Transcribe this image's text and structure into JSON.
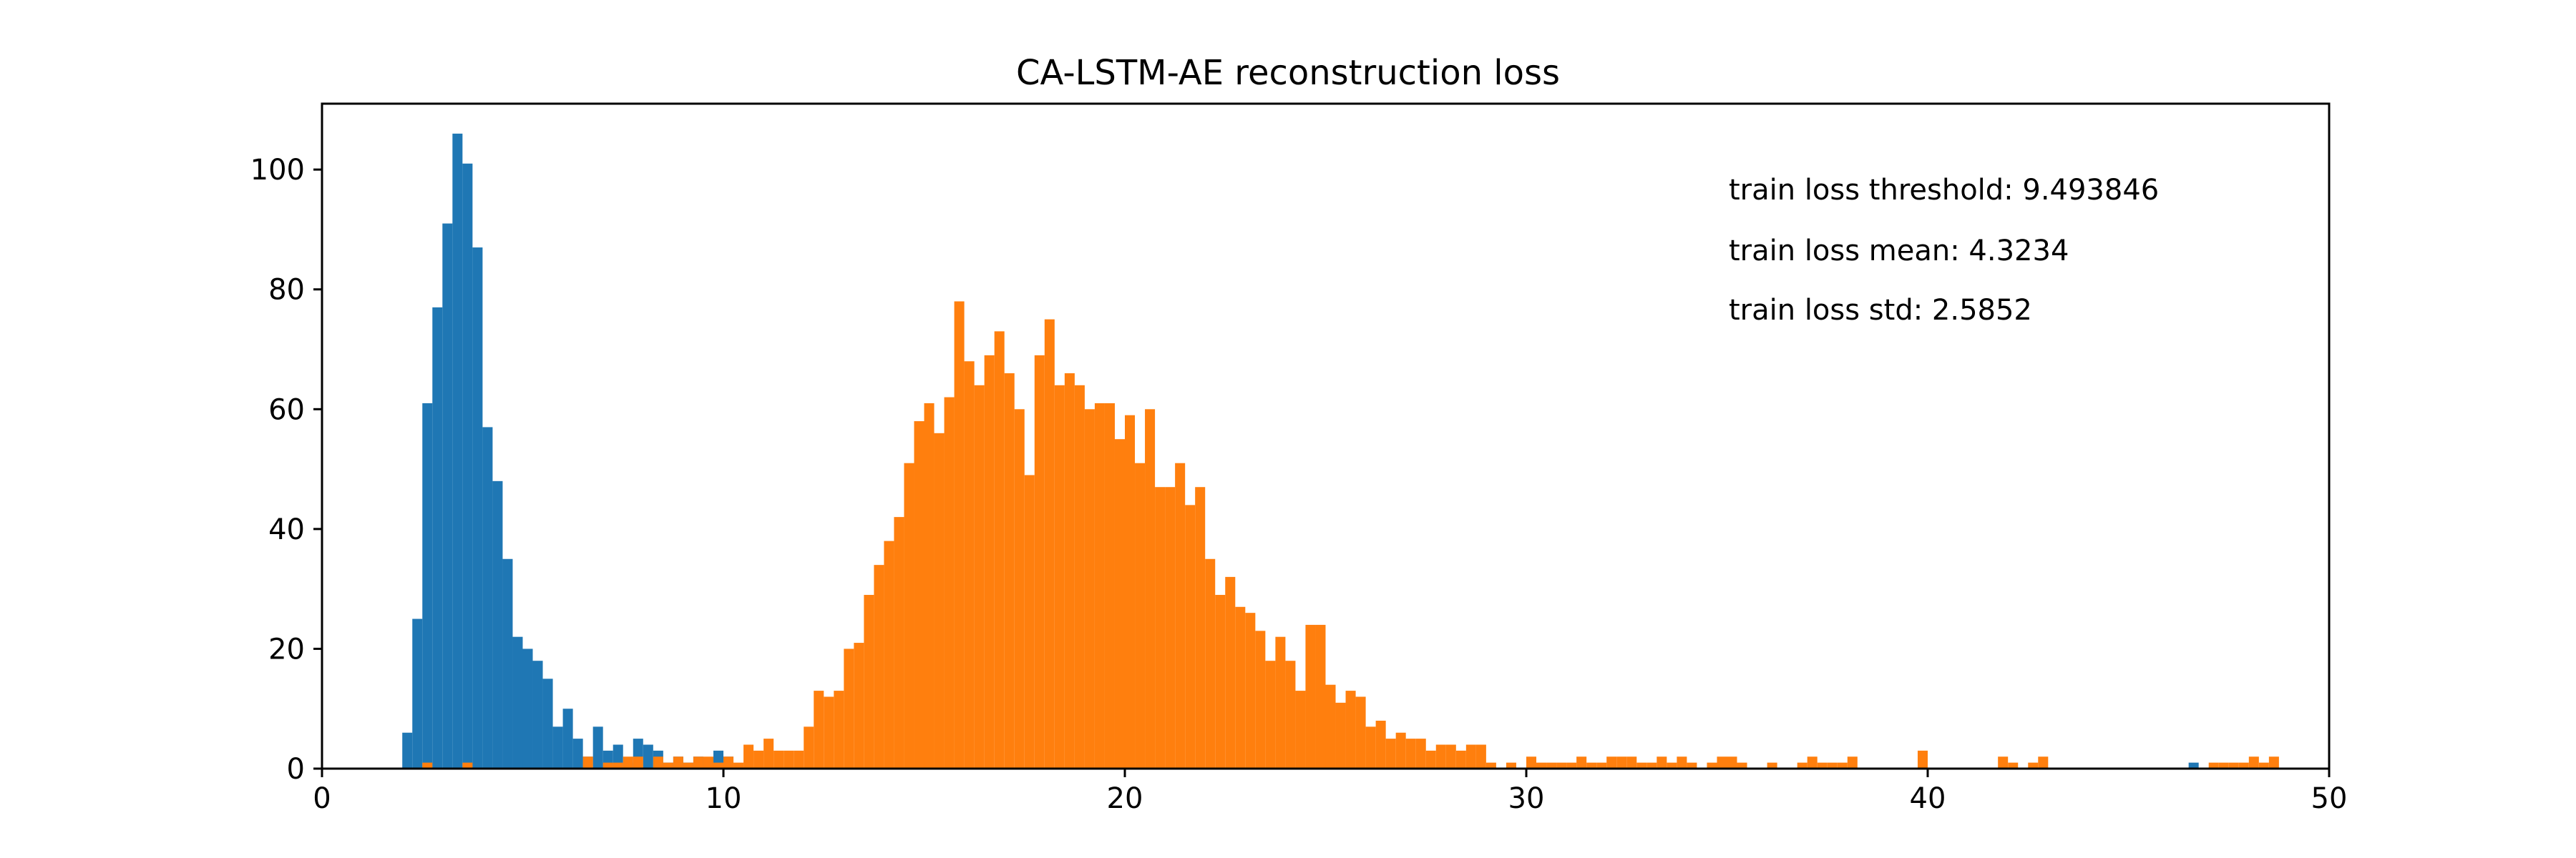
{
  "chart_data": {
    "type": "bar",
    "title": "CA-LSTM-AE reconstruction loss",
    "xlabel": "",
    "ylabel": "",
    "xlim": [
      0,
      50
    ],
    "ylim": [
      0,
      111
    ],
    "xticks": [
      0,
      10,
      20,
      30,
      40,
      50
    ],
    "yticks": [
      0,
      20,
      40,
      60,
      80,
      100
    ],
    "grid": false,
    "bin_width": 0.25,
    "annotations": [
      "train loss threshold: 9.493846",
      "train loss mean: 4.3234",
      "train loss std: 2.5852"
    ],
    "series": [
      {
        "color": "#1f77b4",
        "bins": [
          [
            2.0,
            6
          ],
          [
            2.25,
            25
          ],
          [
            2.5,
            61
          ],
          [
            2.75,
            77
          ],
          [
            3.0,
            91
          ],
          [
            3.25,
            106
          ],
          [
            3.5,
            101
          ],
          [
            3.75,
            87
          ],
          [
            4.0,
            57
          ],
          [
            4.25,
            48
          ],
          [
            4.5,
            35
          ],
          [
            4.75,
            22
          ],
          [
            5.0,
            20
          ],
          [
            5.25,
            18
          ],
          [
            5.5,
            15
          ],
          [
            5.75,
            7
          ],
          [
            6.0,
            10
          ],
          [
            6.25,
            5
          ],
          [
            6.5,
            2
          ],
          [
            6.75,
            7
          ],
          [
            7.0,
            3
          ],
          [
            7.25,
            4
          ],
          [
            7.5,
            1
          ],
          [
            7.75,
            5
          ],
          [
            8.0,
            4
          ],
          [
            8.25,
            3
          ],
          [
            8.5,
            1
          ],
          [
            8.75,
            2
          ],
          [
            9.0,
            1
          ],
          [
            9.25,
            2
          ],
          [
            9.5,
            1
          ],
          [
            9.75,
            3
          ],
          [
            10.0,
            2
          ],
          [
            46.5,
            1
          ]
        ]
      },
      {
        "color": "#ff7f0e",
        "bins": [
          [
            2.5,
            1
          ],
          [
            3.5,
            1
          ],
          [
            6.5,
            2
          ],
          [
            7.0,
            1
          ],
          [
            7.25,
            1
          ],
          [
            7.5,
            2
          ],
          [
            7.75,
            2
          ],
          [
            8.25,
            2
          ],
          [
            8.5,
            1
          ],
          [
            8.75,
            2
          ],
          [
            9.0,
            1
          ],
          [
            9.25,
            2
          ],
          [
            9.5,
            2
          ],
          [
            9.75,
            1
          ],
          [
            10.0,
            2
          ],
          [
            10.25,
            1
          ],
          [
            10.5,
            4
          ],
          [
            10.75,
            3
          ],
          [
            11.0,
            5
          ],
          [
            11.25,
            3
          ],
          [
            11.5,
            3
          ],
          [
            11.75,
            3
          ],
          [
            12.0,
            7
          ],
          [
            12.25,
            13
          ],
          [
            12.5,
            12
          ],
          [
            12.75,
            13
          ],
          [
            13.0,
            20
          ],
          [
            13.25,
            21
          ],
          [
            13.5,
            29
          ],
          [
            13.75,
            34
          ],
          [
            14.0,
            38
          ],
          [
            14.25,
            42
          ],
          [
            14.5,
            51
          ],
          [
            14.75,
            58
          ],
          [
            15.0,
            61
          ],
          [
            15.25,
            56
          ],
          [
            15.5,
            62
          ],
          [
            15.75,
            78
          ],
          [
            16.0,
            68
          ],
          [
            16.25,
            64
          ],
          [
            16.5,
            69
          ],
          [
            16.75,
            73
          ],
          [
            17.0,
            66
          ],
          [
            17.25,
            60
          ],
          [
            17.5,
            49
          ],
          [
            17.75,
            69
          ],
          [
            18.0,
            75
          ],
          [
            18.25,
            64
          ],
          [
            18.5,
            66
          ],
          [
            18.75,
            64
          ],
          [
            19.0,
            60
          ],
          [
            19.25,
            61
          ],
          [
            19.5,
            61
          ],
          [
            19.75,
            55
          ],
          [
            20.0,
            59
          ],
          [
            20.25,
            51
          ],
          [
            20.5,
            60
          ],
          [
            20.75,
            47
          ],
          [
            21.0,
            47
          ],
          [
            21.25,
            51
          ],
          [
            21.5,
            44
          ],
          [
            21.75,
            47
          ],
          [
            22.0,
            35
          ],
          [
            22.25,
            29
          ],
          [
            22.5,
            32
          ],
          [
            22.75,
            27
          ],
          [
            23.0,
            26
          ],
          [
            23.25,
            23
          ],
          [
            23.5,
            18
          ],
          [
            23.75,
            22
          ],
          [
            24.0,
            18
          ],
          [
            24.25,
            13
          ],
          [
            24.5,
            24
          ],
          [
            24.75,
            24
          ],
          [
            25.0,
            14
          ],
          [
            25.25,
            11
          ],
          [
            25.5,
            13
          ],
          [
            25.75,
            12
          ],
          [
            26.0,
            7
          ],
          [
            26.25,
            8
          ],
          [
            26.5,
            5
          ],
          [
            26.75,
            6
          ],
          [
            27.0,
            5
          ],
          [
            27.25,
            5
          ],
          [
            27.5,
            3
          ],
          [
            27.75,
            4
          ],
          [
            28.0,
            4
          ],
          [
            28.25,
            3
          ],
          [
            28.5,
            4
          ],
          [
            28.75,
            4
          ],
          [
            29.0,
            1
          ],
          [
            29.5,
            1
          ],
          [
            30.0,
            2
          ],
          [
            30.25,
            1
          ],
          [
            30.5,
            1
          ],
          [
            30.75,
            1
          ],
          [
            31.0,
            1
          ],
          [
            31.25,
            2
          ],
          [
            31.5,
            1
          ],
          [
            31.75,
            1
          ],
          [
            32.0,
            2
          ],
          [
            32.25,
            2
          ],
          [
            32.5,
            2
          ],
          [
            32.75,
            1
          ],
          [
            33.0,
            1
          ],
          [
            33.25,
            2
          ],
          [
            33.5,
            1
          ],
          [
            33.75,
            2
          ],
          [
            34.0,
            1
          ],
          [
            34.5,
            1
          ],
          [
            34.75,
            2
          ],
          [
            35.0,
            2
          ],
          [
            35.25,
            1
          ],
          [
            36.0,
            1
          ],
          [
            36.75,
            1
          ],
          [
            37.0,
            2
          ],
          [
            37.25,
            1
          ],
          [
            37.5,
            1
          ],
          [
            37.75,
            1
          ],
          [
            38.0,
            2
          ],
          [
            39.75,
            3
          ],
          [
            41.75,
            2
          ],
          [
            42.0,
            1
          ],
          [
            42.5,
            1
          ],
          [
            42.75,
            2
          ],
          [
            47.0,
            1
          ],
          [
            47.25,
            1
          ],
          [
            47.5,
            1
          ],
          [
            47.75,
            1
          ],
          [
            48.0,
            2
          ],
          [
            48.25,
            1
          ],
          [
            48.5,
            2
          ]
        ]
      }
    ]
  }
}
